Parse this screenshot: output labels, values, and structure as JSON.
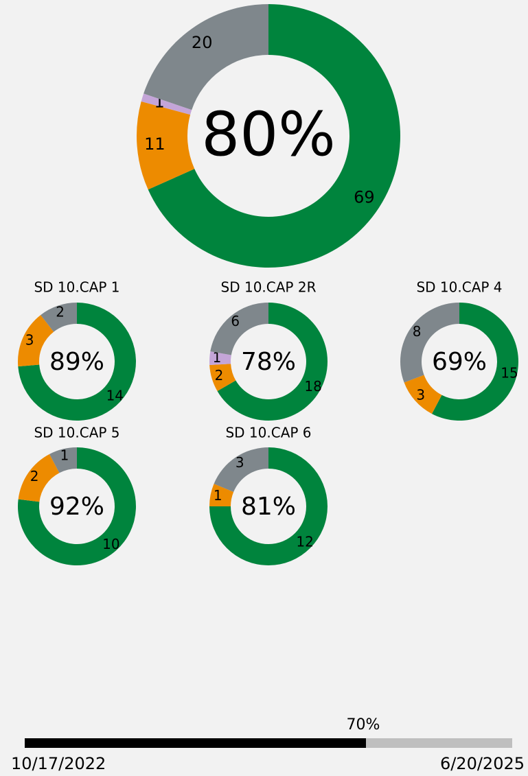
{
  "chart_data": [
    {
      "type": "donut",
      "values": [
        69,
        11,
        1,
        20
      ],
      "colors": [
        "#00843d",
        "#ed8b00",
        "#c4a5d8",
        "#7f878c"
      ],
      "center": {
        "value": 80,
        "label": "80%"
      }
    },
    {
      "type": "donut",
      "title": "SD 10.CAP 1",
      "values": [
        14,
        3,
        2
      ],
      "colors": [
        "#00843d",
        "#ed8b00",
        "#7f878c"
      ],
      "center": {
        "value": 89,
        "label": "89%"
      }
    },
    {
      "type": "donut",
      "title": "SD 10.CAP 2R",
      "values": [
        18,
        2,
        1,
        6
      ],
      "colors": [
        "#00843d",
        "#ed8b00",
        "#c4a5d8",
        "#7f878c"
      ],
      "center": {
        "value": 78,
        "label": "78%"
      }
    },
    {
      "type": "donut",
      "title": "SD 10.CAP 4",
      "values": [
        15,
        3,
        8
      ],
      "colors": [
        "#00843d",
        "#ed8b00",
        "#7f878c"
      ],
      "center": {
        "value": 69,
        "label": "69%"
      }
    },
    {
      "type": "donut",
      "title": "SD 10.CAP 5",
      "values": [
        10,
        2,
        1
      ],
      "colors": [
        "#00843d",
        "#ed8b00",
        "#7f878c"
      ],
      "center": {
        "value": 92,
        "label": "92%"
      }
    },
    {
      "type": "donut",
      "title": "SD 10.CAP 6",
      "values": [
        12,
        1,
        3
      ],
      "colors": [
        "#00843d",
        "#ed8b00",
        "#7f878c"
      ],
      "center": {
        "value": 81,
        "label": "81%"
      }
    },
    {
      "type": "progress",
      "values": [
        70
      ],
      "value_labels": [
        "70%"
      ],
      "xlim": [
        0,
        100
      ],
      "colors": [
        "#000000",
        "#bfbfbf"
      ],
      "start_label": "10/17/2022",
      "end_label": "6/20/2025"
    }
  ]
}
